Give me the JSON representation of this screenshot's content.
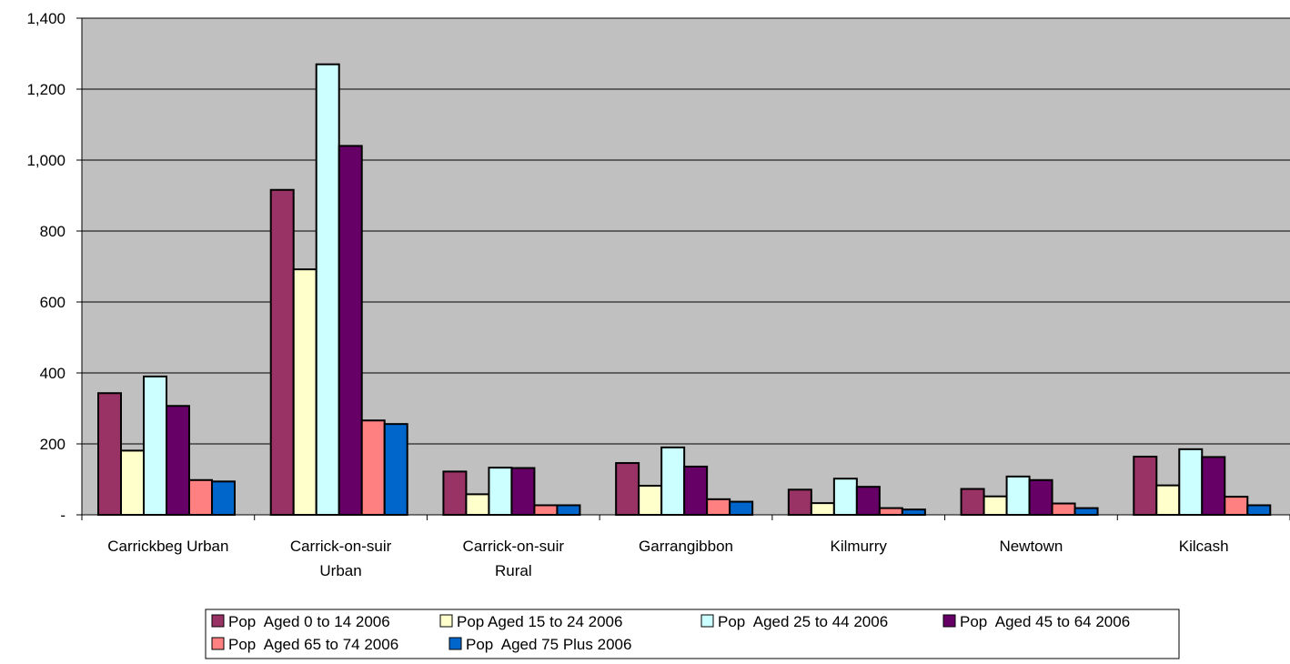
{
  "chart_data": {
    "type": "bar",
    "title": "",
    "xlabel": "",
    "ylabel": "",
    "ylim": [
      0,
      1400
    ],
    "y_ticks": [
      {
        "value": 0,
        "label": "-"
      },
      {
        "value": 200,
        "label": "200"
      },
      {
        "value": 400,
        "label": "400"
      },
      {
        "value": 600,
        "label": "600"
      },
      {
        "value": 800,
        "label": "800"
      },
      {
        "value": 1000,
        "label": "1,000"
      },
      {
        "value": 1200,
        "label": "1,200"
      },
      {
        "value": 1400,
        "label": "1,400"
      }
    ],
    "grid": true,
    "legend_position": "bottom",
    "categories": [
      [
        "Carrickbeg Urban"
      ],
      [
        "Carrick-on-suir",
        "Urban"
      ],
      [
        "Carrick-on-suir",
        "Rural"
      ],
      [
        "Garrangibbon"
      ],
      [
        "Kilmurry"
      ],
      [
        "Newtown"
      ],
      [
        "Kilcash"
      ]
    ],
    "series": [
      {
        "name": "Pop  Aged 0 to 14 2006",
        "color": "#993366",
        "values": [
          343,
          916,
          122,
          146,
          71,
          73,
          164
        ]
      },
      {
        "name": "Pop Aged 15 to 24 2006",
        "color": "#FFFFCC",
        "values": [
          181,
          692,
          58,
          82,
          33,
          52,
          83
        ]
      },
      {
        "name": "Pop  Aged 25 to 44 2006",
        "color": "#CCFFFF",
        "values": [
          390,
          1270,
          133,
          190,
          102,
          108,
          185
        ]
      },
      {
        "name": "Pop  Aged 45 to 64 2006",
        "color": "#660066",
        "values": [
          307,
          1040,
          132,
          136,
          79,
          98,
          163
        ]
      },
      {
        "name": "Pop  Aged 65 to 74 2006",
        "color": "#FF8080",
        "values": [
          98,
          266,
          27,
          44,
          19,
          32,
          51
        ]
      },
      {
        "name": "Pop  Aged 75 Plus 2006",
        "color": "#0066CC",
        "values": [
          94,
          256,
          27,
          37,
          15,
          19,
          27
        ]
      }
    ],
    "colors": {
      "plot_background": "#C0C0C0",
      "gridline": "#000000",
      "bar_outline": "#000000"
    }
  }
}
